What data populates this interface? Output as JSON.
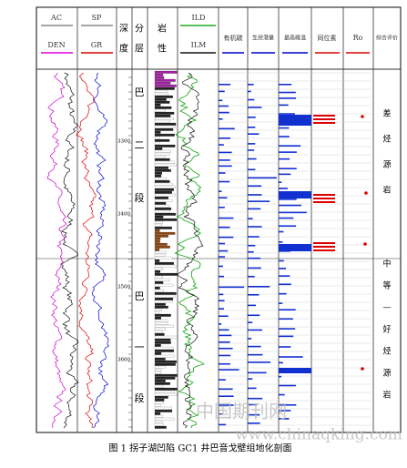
{
  "header": {
    "columns": [
      "AC",
      "DEN",
      "SP",
      "GR",
      "深度",
      "分层",
      "岩性",
      "ILD",
      "ILM",
      "有机碳",
      "生烃潜量",
      "最高峰温",
      "同位素",
      "Ro",
      "综合评价"
    ]
  },
  "depth_labels": [
    3300,
    3400,
    3500,
    3600
  ],
  "layers": [
    [
      "巴",
      "二",
      "段"
    ],
    [
      "巴",
      "一",
      "段"
    ]
  ],
  "evaluation": [
    [
      "差",
      "烃",
      "源",
      "岩"
    ],
    [
      "中",
      "等",
      "—",
      "好",
      "烃",
      "源",
      "岩"
    ]
  ],
  "caption": "图 1  拐子湖凹陷 GC1 井巴音戈壁组地化剖面",
  "watermark": [
    "中国期刊网",
    "www.chinaqking.com"
  ]
}
